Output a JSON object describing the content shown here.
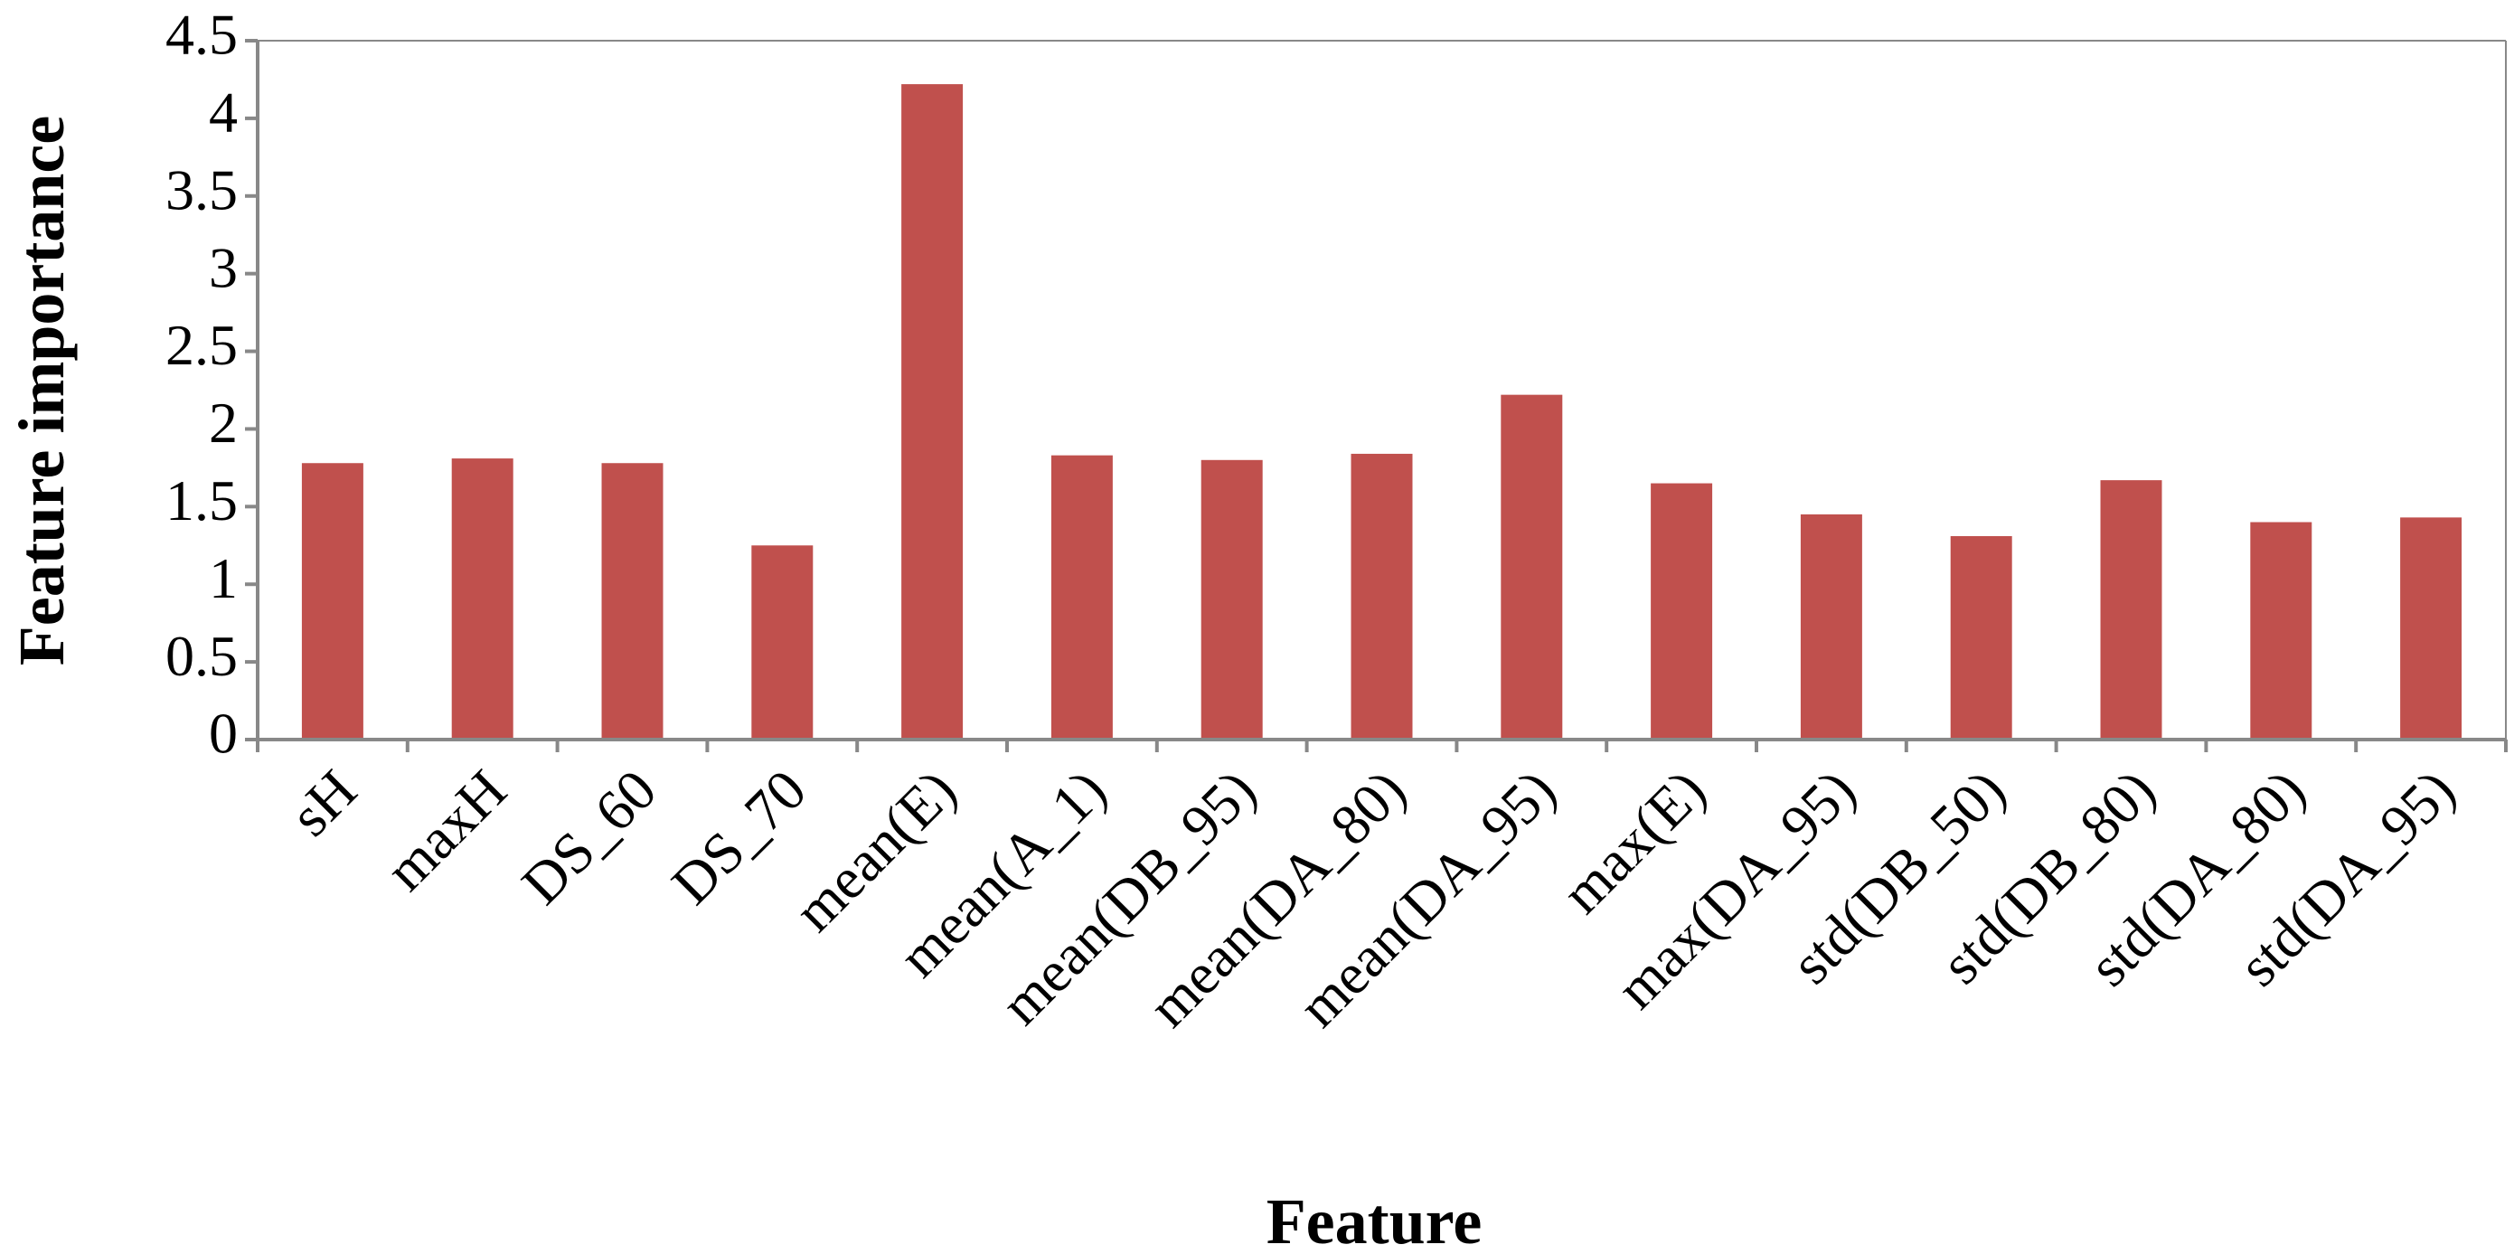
{
  "chart_data": {
    "type": "bar",
    "x_label": "Feature",
    "y_label": "Feature importance",
    "categories": [
      "sH",
      "maxH",
      "DS_60",
      "DS_70",
      "mean(E)",
      "mean(A_1)",
      "mean(DB_95)",
      "mean(DA_80)",
      "mean(DA_95)",
      "max(E)",
      "max(DA_95)",
      "std(DB_50)",
      "std(DB_80)",
      "std(DA_80)",
      "std(DA_95)"
    ],
    "values": [
      1.78,
      1.81,
      1.78,
      1.25,
      4.22,
      1.83,
      1.8,
      1.84,
      2.22,
      1.65,
      1.45,
      1.31,
      1.67,
      1.4,
      1.43
    ],
    "color": "#c0504d",
    "ylim": [
      0,
      4.5
    ],
    "yticks": [
      0,
      0.5,
      1,
      1.5,
      2,
      2.5,
      3,
      3.5,
      4,
      4.5
    ],
    "grid": false
  }
}
